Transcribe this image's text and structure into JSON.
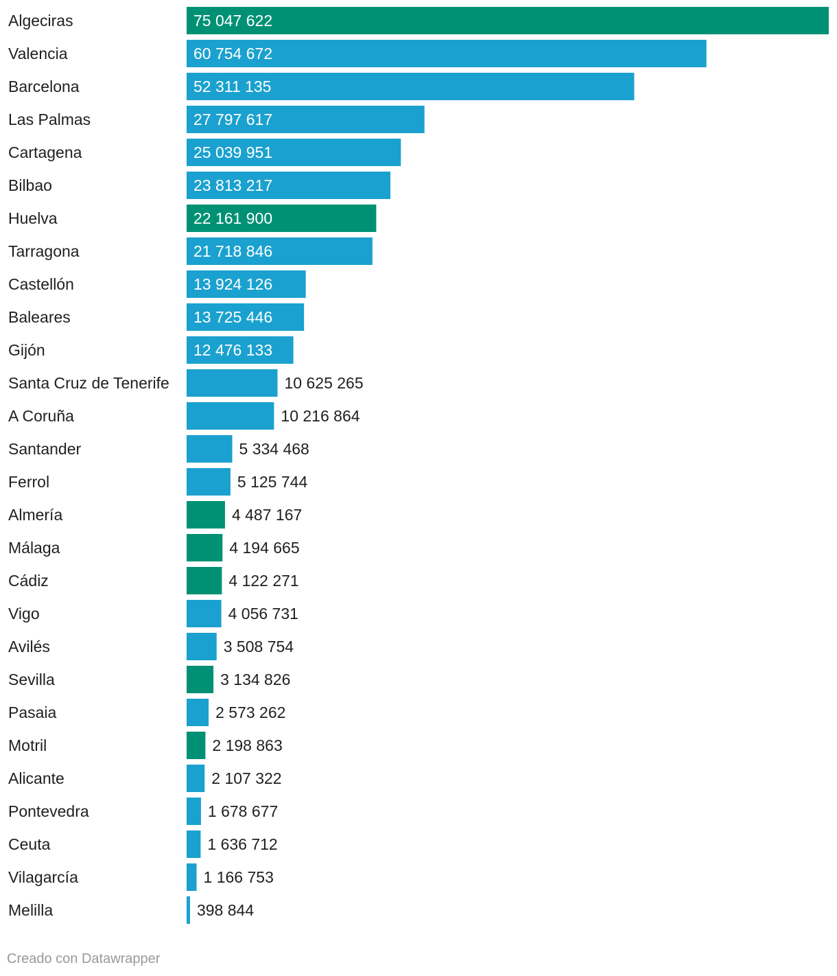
{
  "chart_data": {
    "type": "bar",
    "orientation": "horizontal",
    "title": "",
    "xlabel": "",
    "ylabel": "",
    "xlim": [
      0,
      75047622
    ],
    "grid": false,
    "legend": "none",
    "colors": {
      "green": "#009174",
      "blue": "#1aa1cf"
    },
    "categories": [
      "Algeciras",
      "Valencia",
      "Barcelona",
      "Las Palmas",
      "Cartagena",
      "Bilbao",
      "Huelva",
      "Tarragona",
      "Castellón",
      "Baleares",
      "Gijón",
      "Santa Cruz de Tenerife",
      "A Coruña",
      "Santander",
      "Ferrol",
      "Almería",
      "Málaga",
      "Cádiz",
      "Vigo",
      "Avilés",
      "Sevilla",
      "Pasaia",
      "Motril",
      "Alicante",
      "Pontevedra",
      "Ceuta",
      "Vilagarcía",
      "Melilla"
    ],
    "values": [
      75047622,
      60754672,
      52311135,
      27797617,
      25039951,
      23813217,
      22161900,
      21718846,
      13924126,
      13725446,
      12476133,
      10625265,
      10216864,
      5334468,
      5125744,
      4487167,
      4194665,
      4122271,
      4056731,
      3508754,
      3134826,
      2573262,
      2198863,
      2107322,
      1678677,
      1636712,
      1166753,
      398844
    ],
    "value_labels": [
      "75 047 622",
      "60 754 672",
      "52 311 135",
      "27 797 617",
      "25 039 951",
      "23 813 217",
      "22 161 900",
      "21 718 846",
      "13 924 126",
      "13 725 446",
      "12 476 133",
      "10 625 265",
      "10 216 864",
      "5 334 468",
      "5 125 744",
      "4 487 167",
      "4 194 665",
      "4 122 271",
      "4 056 731",
      "3 508 754",
      "3 134 826",
      "2 573 262",
      "2 198 863",
      "2 107 322",
      "1 678 677",
      "1 636 712",
      "1 166 753",
      "398 844"
    ],
    "bar_colors": [
      "green",
      "blue",
      "blue",
      "blue",
      "blue",
      "blue",
      "green",
      "blue",
      "blue",
      "blue",
      "blue",
      "blue",
      "blue",
      "blue",
      "blue",
      "green",
      "green",
      "green",
      "blue",
      "blue",
      "green",
      "blue",
      "green",
      "blue",
      "blue",
      "blue",
      "blue",
      "blue"
    ]
  },
  "footer": {
    "credit": "Creado con Datawrapper"
  }
}
